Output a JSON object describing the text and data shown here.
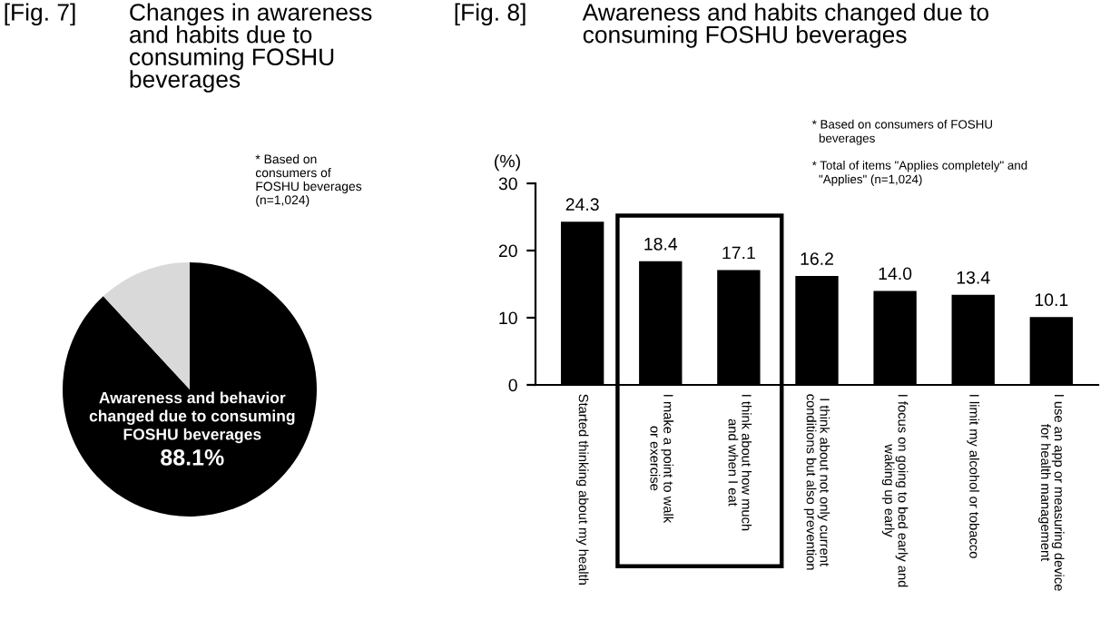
{
  "chart_data": [
    {
      "type": "pie",
      "title": "[Fig. 7] Changes in awareness\nand habits due to\nconsuming FOSHU\nbeverages",
      "categories": [
        "Awareness and behavior\nchanged due to consuming\nFOSHU beverages",
        null
      ],
      "values": [
        88.1,
        11.9
      ],
      "colors": [
        "#000000",
        "#d9d9d9"
      ],
      "value_labels": [
        "88.1%",
        null
      ],
      "annotations": [
        "* Based on\nconsumers of\nFOSHU beverages\n(n=1,024)"
      ]
    },
    {
      "type": "bar",
      "title": "[Fig. 8] Awareness and habits changed due to\nconsuming FOSHU beverages",
      "ylabel": "(%)",
      "categories": [
        "Started thinking about my health",
        "I make a point to walk\nor exercise",
        "I think about how much\nand when I eat",
        "I think about not only current\nconditions but also prevention",
        "I focus on going to bed early and\nwaking up early",
        "I limit my alcohol or tobacco",
        "I use an app or measuring device\nfor health management"
      ],
      "values": [
        24.3,
        18.4,
        17.1,
        16.2,
        14.0,
        13.4,
        10.1
      ],
      "color": "#000000",
      "value_labels": [
        "24.3",
        "18.4",
        "17.1",
        "16.2",
        "14.0",
        "13.4",
        "10.1"
      ],
      "ylim": [
        0,
        30
      ],
      "yticks": [
        0,
        10,
        20,
        30
      ],
      "grid": false,
      "legend": false,
      "annotations": [
        "* Based on consumers of FOSHU\n  beverages",
        "* Total of items \"Applies completely\" and\n  \"Applies\" (n=1,024)"
      ]
    }
  ]
}
